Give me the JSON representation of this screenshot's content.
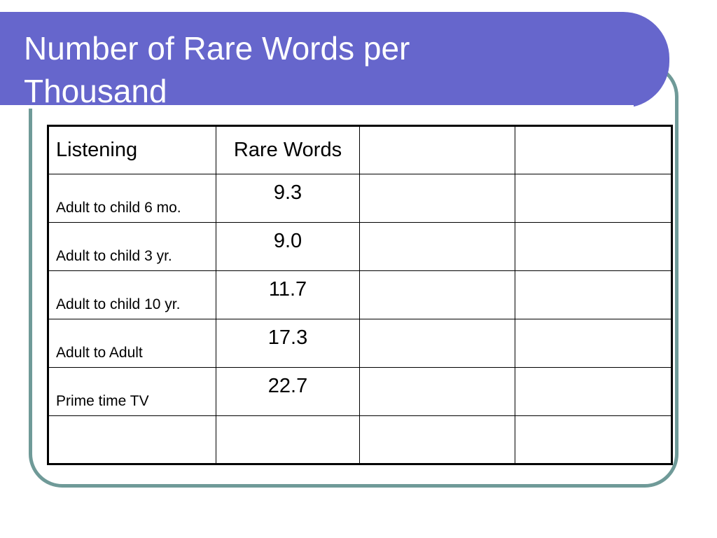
{
  "slide": {
    "title_line1": "Number of Rare Words per",
    "title_line2": "Thousand",
    "colors": {
      "title_bar": "#6666cc",
      "title_text": "#ffffff",
      "frame_border": "#6f9a98",
      "table_border": "#000000"
    }
  },
  "table": {
    "headers": [
      "Listening",
      "Rare Words",
      "",
      ""
    ],
    "rows": [
      {
        "label": "Adult to child 6 mo.",
        "value": "9.3"
      },
      {
        "label": "Adult to child 3 yr.",
        "value": "9.0"
      },
      {
        "label": "Adult to child 10 yr.",
        "value": "11.7"
      },
      {
        "label": "Adult to Adult",
        "value": "17.3"
      },
      {
        "label": "Prime time TV",
        "value": "22.7"
      },
      {
        "label": "",
        "value": ""
      }
    ]
  }
}
